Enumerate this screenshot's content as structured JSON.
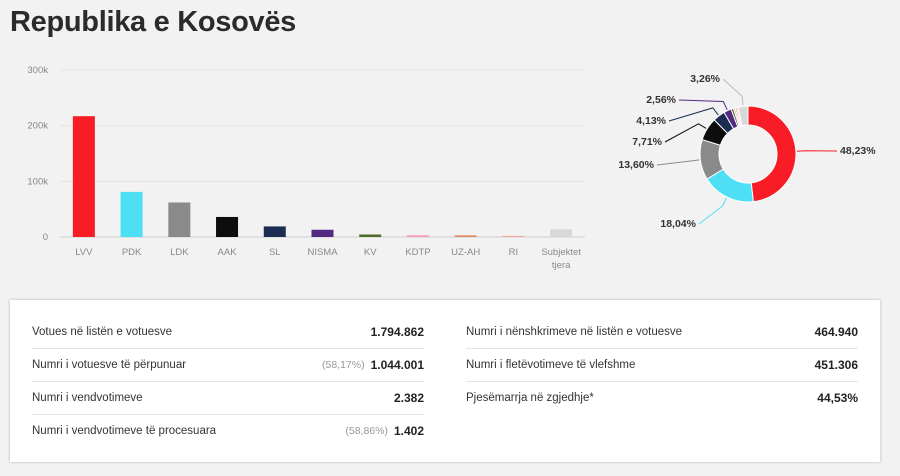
{
  "title": "Republika e Kosovës",
  "chart_data": [
    {
      "type": "bar",
      "categories": [
        "LVV",
        "PDK",
        "LDK",
        "AAK",
        "SL",
        "NISMA",
        "KV",
        "KDTP",
        "UZ-AH",
        "RI",
        "Subjektet tjera"
      ],
      "values": [
        217000,
        81000,
        62000,
        36000,
        19000,
        13000,
        4500,
        3000,
        3000,
        2000,
        14000
      ],
      "colors": [
        "#f71c25",
        "#4de0f5",
        "#8a8a8a",
        "#0d0d0d",
        "#1b2d52",
        "#532a82",
        "#506d2c",
        "#f49bb0",
        "#e48a63",
        "#f4a899",
        "#d8d8d8"
      ],
      "ylim": [
        0,
        300000
      ],
      "yticks": [
        0,
        100000,
        200000,
        300000
      ],
      "ytick_labels": [
        "0",
        "100k",
        "200k",
        "300k"
      ],
      "grid": true
    },
    {
      "type": "pie",
      "donut": true,
      "slices": [
        {
          "value": 48.23,
          "label": "48,23%",
          "color": "#f71c25"
        },
        {
          "value": 18.04,
          "label": "18,04%",
          "color": "#4de0f5"
        },
        {
          "value": 13.6,
          "label": "13,60%",
          "color": "#8a8a8a"
        },
        {
          "value": 7.71,
          "label": "7,71%",
          "color": "#0d0d0d"
        },
        {
          "value": 4.13,
          "label": "4,13%",
          "color": "#1b2d52"
        },
        {
          "value": 2.56,
          "label": "2,56%",
          "color": "#532a82"
        },
        {
          "value": 0.8,
          "label": "",
          "color": "#506d2c"
        },
        {
          "value": 0.6,
          "label": "",
          "color": "#f49bb0"
        },
        {
          "value": 0.55,
          "label": "",
          "color": "#e48a63"
        },
        {
          "value": 0.52,
          "label": "",
          "color": "#f4a899"
        },
        {
          "value": 3.26,
          "label": "3,26%",
          "color": "#d8d8d8"
        }
      ]
    }
  ],
  "stats": {
    "left": [
      {
        "label": "Votues në listën e votuesve",
        "pct": "",
        "value": "1.794.862"
      },
      {
        "label": "Numri i votuesve të përpunuar",
        "pct": "(58,17%)",
        "value": "1.044.001"
      },
      {
        "label": "Numri i vendvotimeve",
        "pct": "",
        "value": "2.382"
      },
      {
        "label": "Numri i vendvotimeve të procesuara",
        "pct": "(58,86%)",
        "value": "1.402"
      }
    ],
    "right": [
      {
        "label": "Numri i nënshkrimeve në listën e votuesve",
        "pct": "",
        "value": "464.940"
      },
      {
        "label": "Numri i fletëvotimeve të vlefshme",
        "pct": "",
        "value": "451.306"
      },
      {
        "label": "Pjesëmarrja në zgjedhje*",
        "pct": "",
        "value": "44,53%"
      }
    ]
  }
}
